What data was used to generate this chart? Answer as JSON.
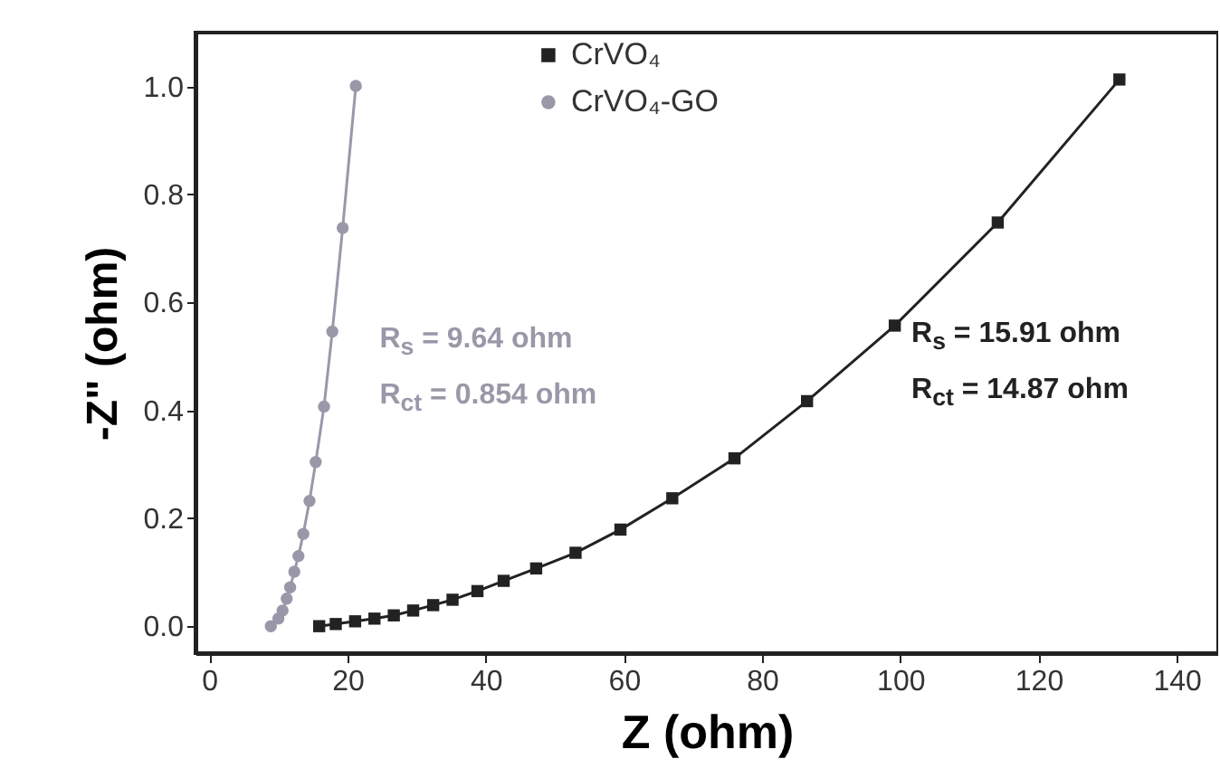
{
  "chart_data": {
    "type": "line",
    "xlabel": "Z (ohm)",
    "ylabel": "-Z\" (ohm)",
    "xlim": [
      -2,
      146
    ],
    "ylim": [
      -0.05,
      1.1
    ],
    "xticks": [
      0,
      20,
      40,
      60,
      80,
      100,
      120,
      140
    ],
    "yticks": [
      {
        "value": 0,
        "label": "0.0"
      },
      {
        "value": 0.2,
        "label": "0.2"
      },
      {
        "value": 0.4,
        "label": "0.4"
      },
      {
        "value": 0.6,
        "label": "0.6"
      },
      {
        "value": 0.8,
        "label": "0.8"
      },
      {
        "value": 1,
        "label": "1.0"
      }
    ],
    "grid": false,
    "legend": "top",
    "line_style": "solid",
    "series": [
      {
        "name": "CrVO₄",
        "color": "#222222",
        "marker": "square",
        "x": [
          15.9,
          18.3,
          21.1,
          23.9,
          26.7,
          29.5,
          32.4,
          35.2,
          38.8,
          42.6,
          47.3,
          53.0,
          59.5,
          67.0,
          76.0,
          86.5,
          99.2,
          114.1,
          131.7
        ],
        "values": [
          0.0,
          0.004,
          0.009,
          0.014,
          0.02,
          0.029,
          0.039,
          0.049,
          0.065,
          0.084,
          0.107,
          0.136,
          0.179,
          0.237,
          0.311,
          0.417,
          0.557,
          0.748,
          1.013
        ]
      },
      {
        "name": "CrVO₄-GO",
        "color": "#9a98a8",
        "marker": "circle",
        "x": [
          8.9,
          10.0,
          10.6,
          11.2,
          11.7,
          12.3,
          12.9,
          13.6,
          14.5,
          15.4,
          16.6,
          17.8,
          19.3,
          21.2
        ],
        "values": [
          0.0,
          0.014,
          0.029,
          0.051,
          0.072,
          0.101,
          0.13,
          0.171,
          0.232,
          0.304,
          0.407,
          0.546,
          0.738,
          1.001
        ]
      }
    ],
    "annotations": [
      "R$_{s}$ = 9.64 ohm",
      "R$_{ct}$ = 0.854 ohm",
      "R$_{s}$ = 15.91 ohm",
      "R$_{ct}$ = 14.87 ohm"
    ]
  }
}
